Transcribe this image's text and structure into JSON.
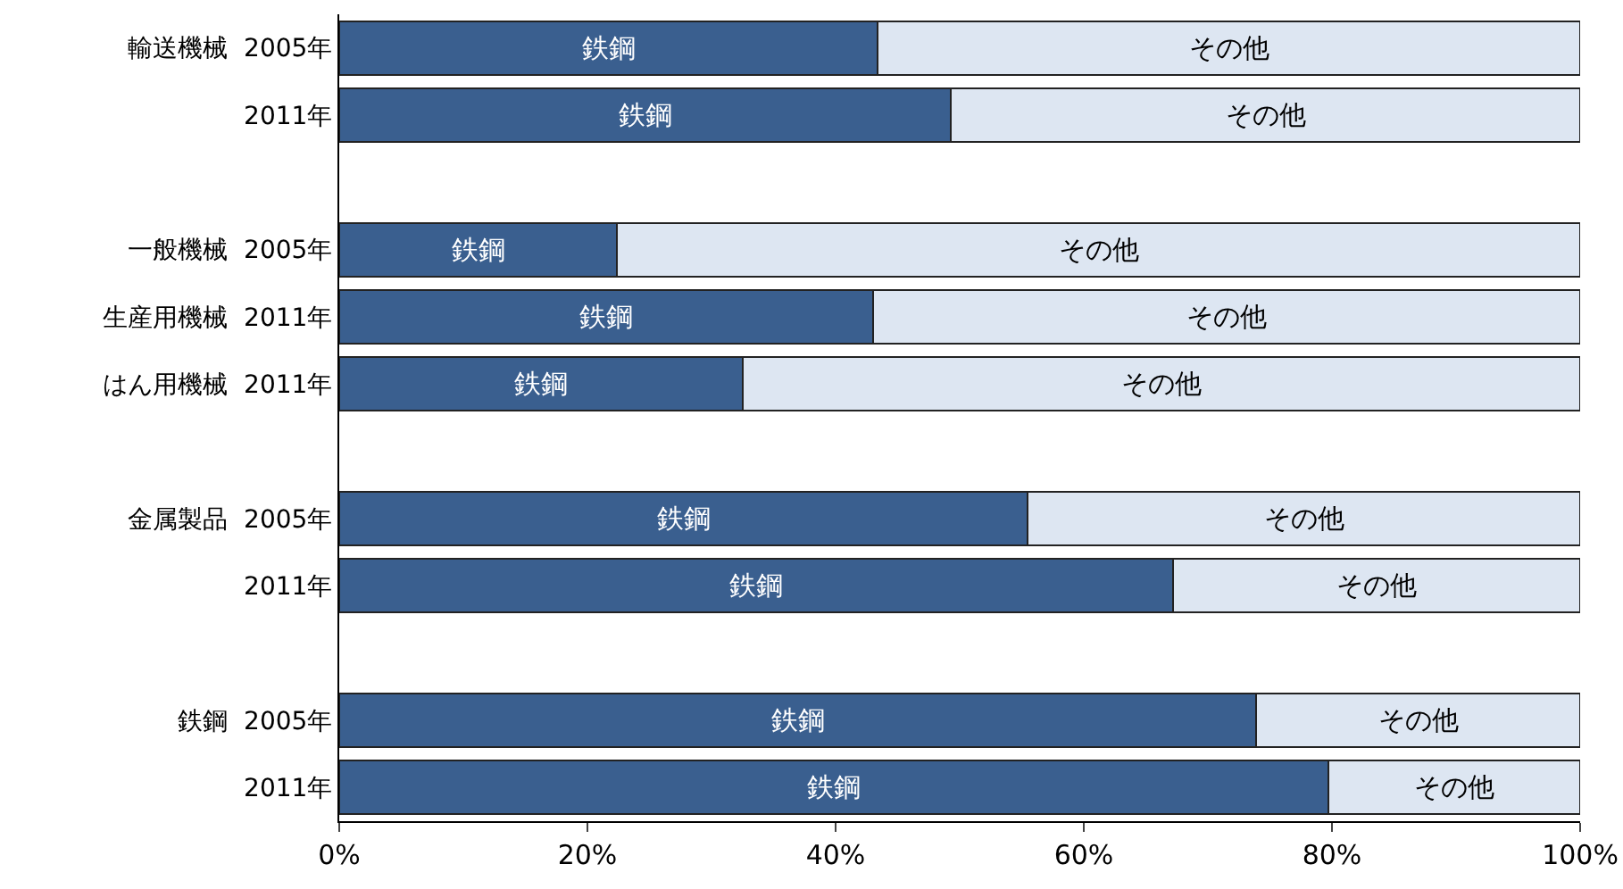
{
  "chart_data": {
    "type": "bar",
    "orientation": "horizontal",
    "stacked": true,
    "categories": [
      "輸送機械  2005年",
      "2011年",
      null,
      "一般機械  2005年",
      "生産用機械  2011年",
      "はん用機械  2011年",
      null,
      "金属製品  2005年",
      "2011年",
      null,
      "鉄鋼  2005年",
      "2011年"
    ],
    "series": [
      {
        "name": "鉄鋼",
        "color": "#3a5f8f",
        "values": [
          43.4,
          49.3,
          null,
          22.4,
          43.0,
          32.5,
          null,
          55.5,
          67.2,
          null,
          73.9,
          79.7
        ]
      },
      {
        "name": "その他",
        "color": "#dde6f2",
        "values": [
          56.6,
          50.7,
          null,
          77.6,
          57.0,
          67.5,
          null,
          44.5,
          32.8,
          null,
          26.1,
          20.3
        ]
      }
    ],
    "xlim": [
      0,
      100
    ],
    "xticks": [
      {
        "value": 0,
        "label": "0%"
      },
      {
        "value": 20,
        "label": "20%"
      },
      {
        "value": 40,
        "label": "40%"
      },
      {
        "value": 60,
        "label": "60%"
      },
      {
        "value": 80,
        "label": "80%"
      },
      {
        "value": 100,
        "label": "100%"
      }
    ],
    "grid": false,
    "legend": false
  }
}
